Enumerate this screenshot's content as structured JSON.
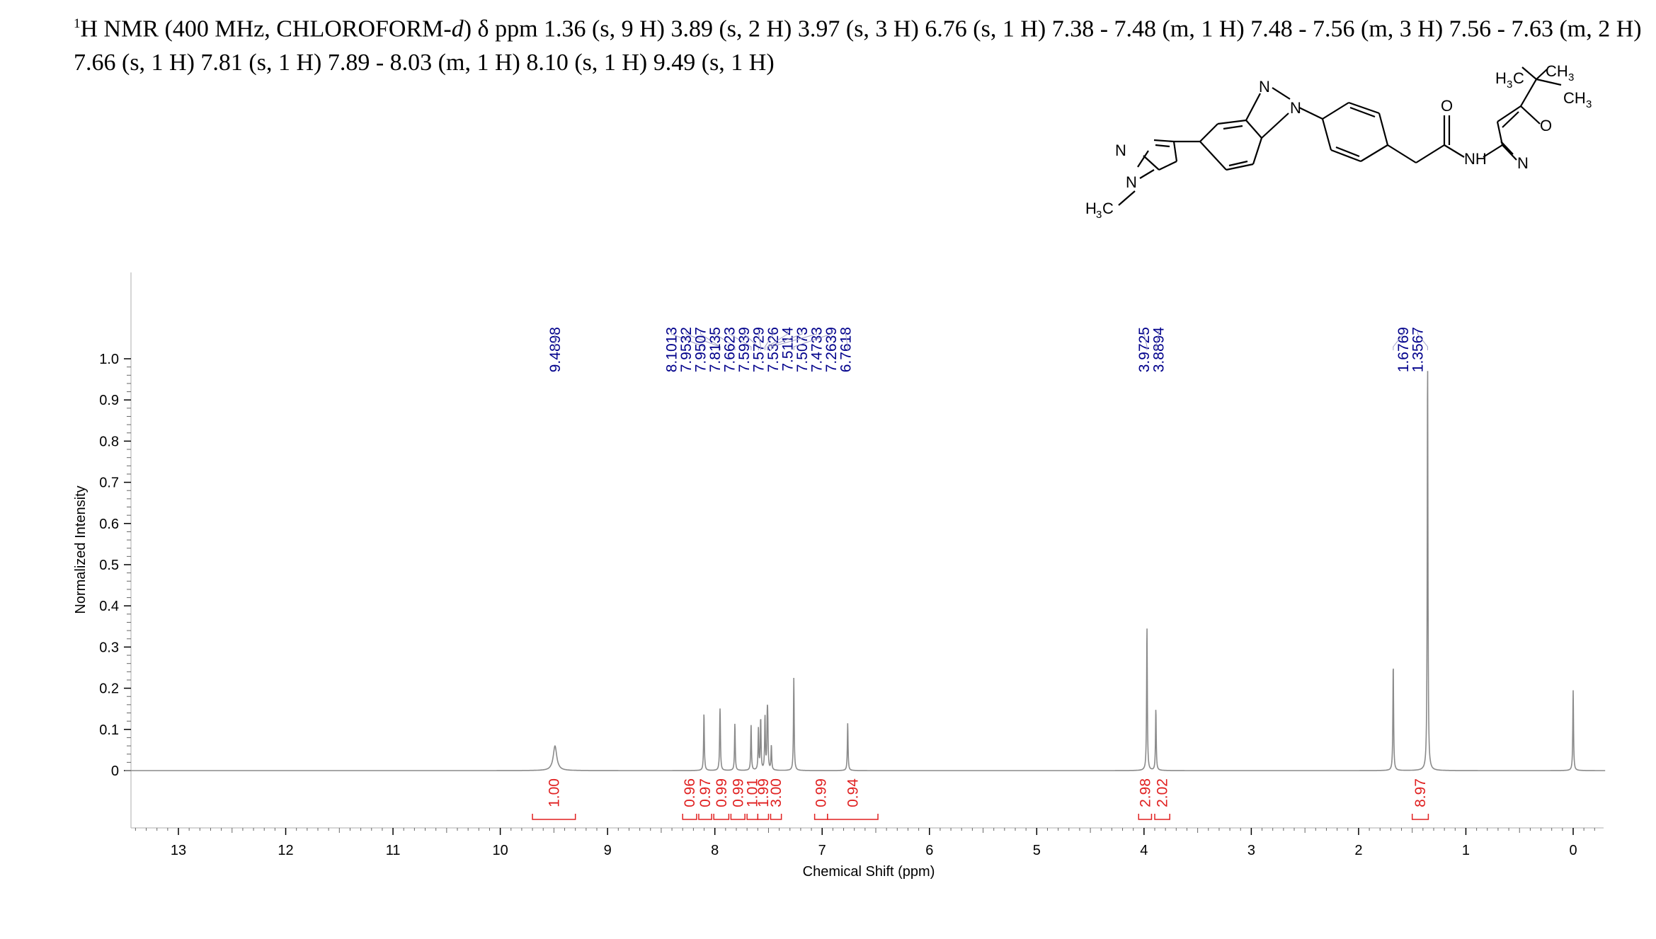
{
  "header": {
    "isotope_sup": "1",
    "prefix": "H NMR (400 MHz, CHLOROFORM-",
    "solvent_italic": "d",
    "close_paren": ")",
    "delta": " δ ",
    "text": "ppm 1.36 (s, 9 H) 3.89 (s, 2 H) 3.97 (s, 3 H) 6.76 (s, 1 H) 7.38 - 7.48 (m, 1 H) 7.48 - 7.56 (m, 3 H) 7.56 - 7.63 (m, 2 H) 7.66 (s, 1 H) 7.81 (s, 1 H) 7.89 - 8.03 (m, 1 H) 8.10 (s, 1 H) 9.49 (s, 1 H)"
  },
  "structure_labels": {
    "n_pyrazole_top": "N",
    "n_pyrazole_methyl": "N",
    "methyl_left": "H",
    "methyl_left_sub": "3",
    "methyl_left_c": "C",
    "n_imidazole_top": "N",
    "n_imidazole_aryl": "N",
    "carbonyl_o": "O",
    "amide_nh": "NH",
    "isoxazole_n": "N",
    "isoxazole_o": "O",
    "tbu_ch3_left_h": "H",
    "tbu_ch3_left_sub": "3",
    "tbu_ch3_left_c": "C",
    "tbu_ch3_top": "CH",
    "tbu_ch3_top_sub": "3",
    "tbu_ch3_right": "CH",
    "tbu_ch3_right_sub": "3"
  },
  "colors": {
    "spectrum": "#8a8a8a",
    "peak_label": "#00008b",
    "integral": "#e02020",
    "axis": "#000000"
  },
  "chart_data": {
    "type": "line",
    "xlabel": "Chemical Shift (ppm)",
    "ylabel": "Normalized Intensity",
    "x_reversed": true,
    "xlim": [
      13.5,
      -0.3
    ],
    "ylim": [
      -0.13,
      1.2
    ],
    "x_ticks": [
      13,
      12,
      11,
      10,
      9,
      8,
      7,
      6,
      5,
      4,
      3,
      2,
      1,
      0
    ],
    "y_ticks": [
      1.0,
      0.9,
      0.8,
      0.7,
      0.6,
      0.5,
      0.4,
      0.3,
      0.2,
      0.1,
      0
    ],
    "y_tick_labels": [
      "1.0",
      "0.9",
      "0.8",
      "0.7",
      "0.6",
      "0.5",
      "0.4",
      "0.3",
      "0.2",
      "0.1",
      "0"
    ],
    "peaks": [
      {
        "ppm": 9.49,
        "height": 0.06,
        "width": 0.02
      },
      {
        "ppm": 8.1013,
        "height": 0.14,
        "width": 0.004
      },
      {
        "ppm": 7.9532,
        "height": 0.085,
        "width": 0.004
      },
      {
        "ppm": 7.9507,
        "height": 0.08,
        "width": 0.004
      },
      {
        "ppm": 7.8135,
        "height": 0.115,
        "width": 0.004
      },
      {
        "ppm": 7.6623,
        "height": 0.11,
        "width": 0.004
      },
      {
        "ppm": 7.5939,
        "height": 0.1,
        "width": 0.004
      },
      {
        "ppm": 7.5729,
        "height": 0.125,
        "width": 0.004
      },
      {
        "ppm": 7.5326,
        "height": 0.13,
        "width": 0.004
      },
      {
        "ppm": 7.5114,
        "height": 0.1,
        "width": 0.004
      },
      {
        "ppm": 7.5073,
        "height": 0.095,
        "width": 0.004
      },
      {
        "ppm": 7.4733,
        "height": 0.06,
        "width": 0.004
      },
      {
        "ppm": 7.2639,
        "height": 0.225,
        "width": 0.004
      },
      {
        "ppm": 6.7618,
        "height": 0.115,
        "width": 0.004
      },
      {
        "ppm": 3.9725,
        "height": 0.35,
        "width": 0.004
      },
      {
        "ppm": 3.8894,
        "height": 0.15,
        "width": 0.004
      },
      {
        "ppm": 1.6769,
        "height": 0.26,
        "width": 0.004
      },
      {
        "ppm": 1.3567,
        "height": 1.0,
        "width": 0.004
      },
      {
        "ppm": 0.0,
        "height": 0.195,
        "width": 0.004
      }
    ],
    "peak_labels": [
      "9.4898",
      "8.1013",
      "7.9532",
      "7.9507",
      "7.8135",
      "7.6623",
      "7.5939",
      "7.5729",
      "7.5326",
      "7.5114",
      "7.5073",
      "7.4733",
      "7.2639",
      "6.7618",
      "3.9725",
      "3.8894",
      "1.6769",
      "1.3567"
    ],
    "integrals": [
      {
        "from": 9.7,
        "to": 9.3,
        "value": "1.00"
      },
      {
        "from": 8.3,
        "to": 8.17,
        "value": "0.96"
      },
      {
        "from": 8.15,
        "to": 8.03,
        "value": "0.97"
      },
      {
        "from": 8.01,
        "to": 7.87,
        "value": "0.99"
      },
      {
        "from": 7.85,
        "to": 7.72,
        "value": "0.99"
      },
      {
        "from": 7.7,
        "to": 7.6,
        "value": "1.01"
      },
      {
        "from": 7.6,
        "to": 7.5,
        "value": "1.99"
      },
      {
        "from": 7.48,
        "to": 7.38,
        "value": "3.00"
      },
      {
        "from": 7.07,
        "to": 6.95,
        "value": "0.99"
      },
      {
        "from": 6.95,
        "to": 6.48,
        "value": "0.94"
      },
      {
        "from": 4.05,
        "to": 3.93,
        "value": "2.98"
      },
      {
        "from": 3.9,
        "to": 3.76,
        "value": "2.02"
      },
      {
        "from": 1.5,
        "to": 1.35,
        "value": "8.97"
      }
    ]
  }
}
